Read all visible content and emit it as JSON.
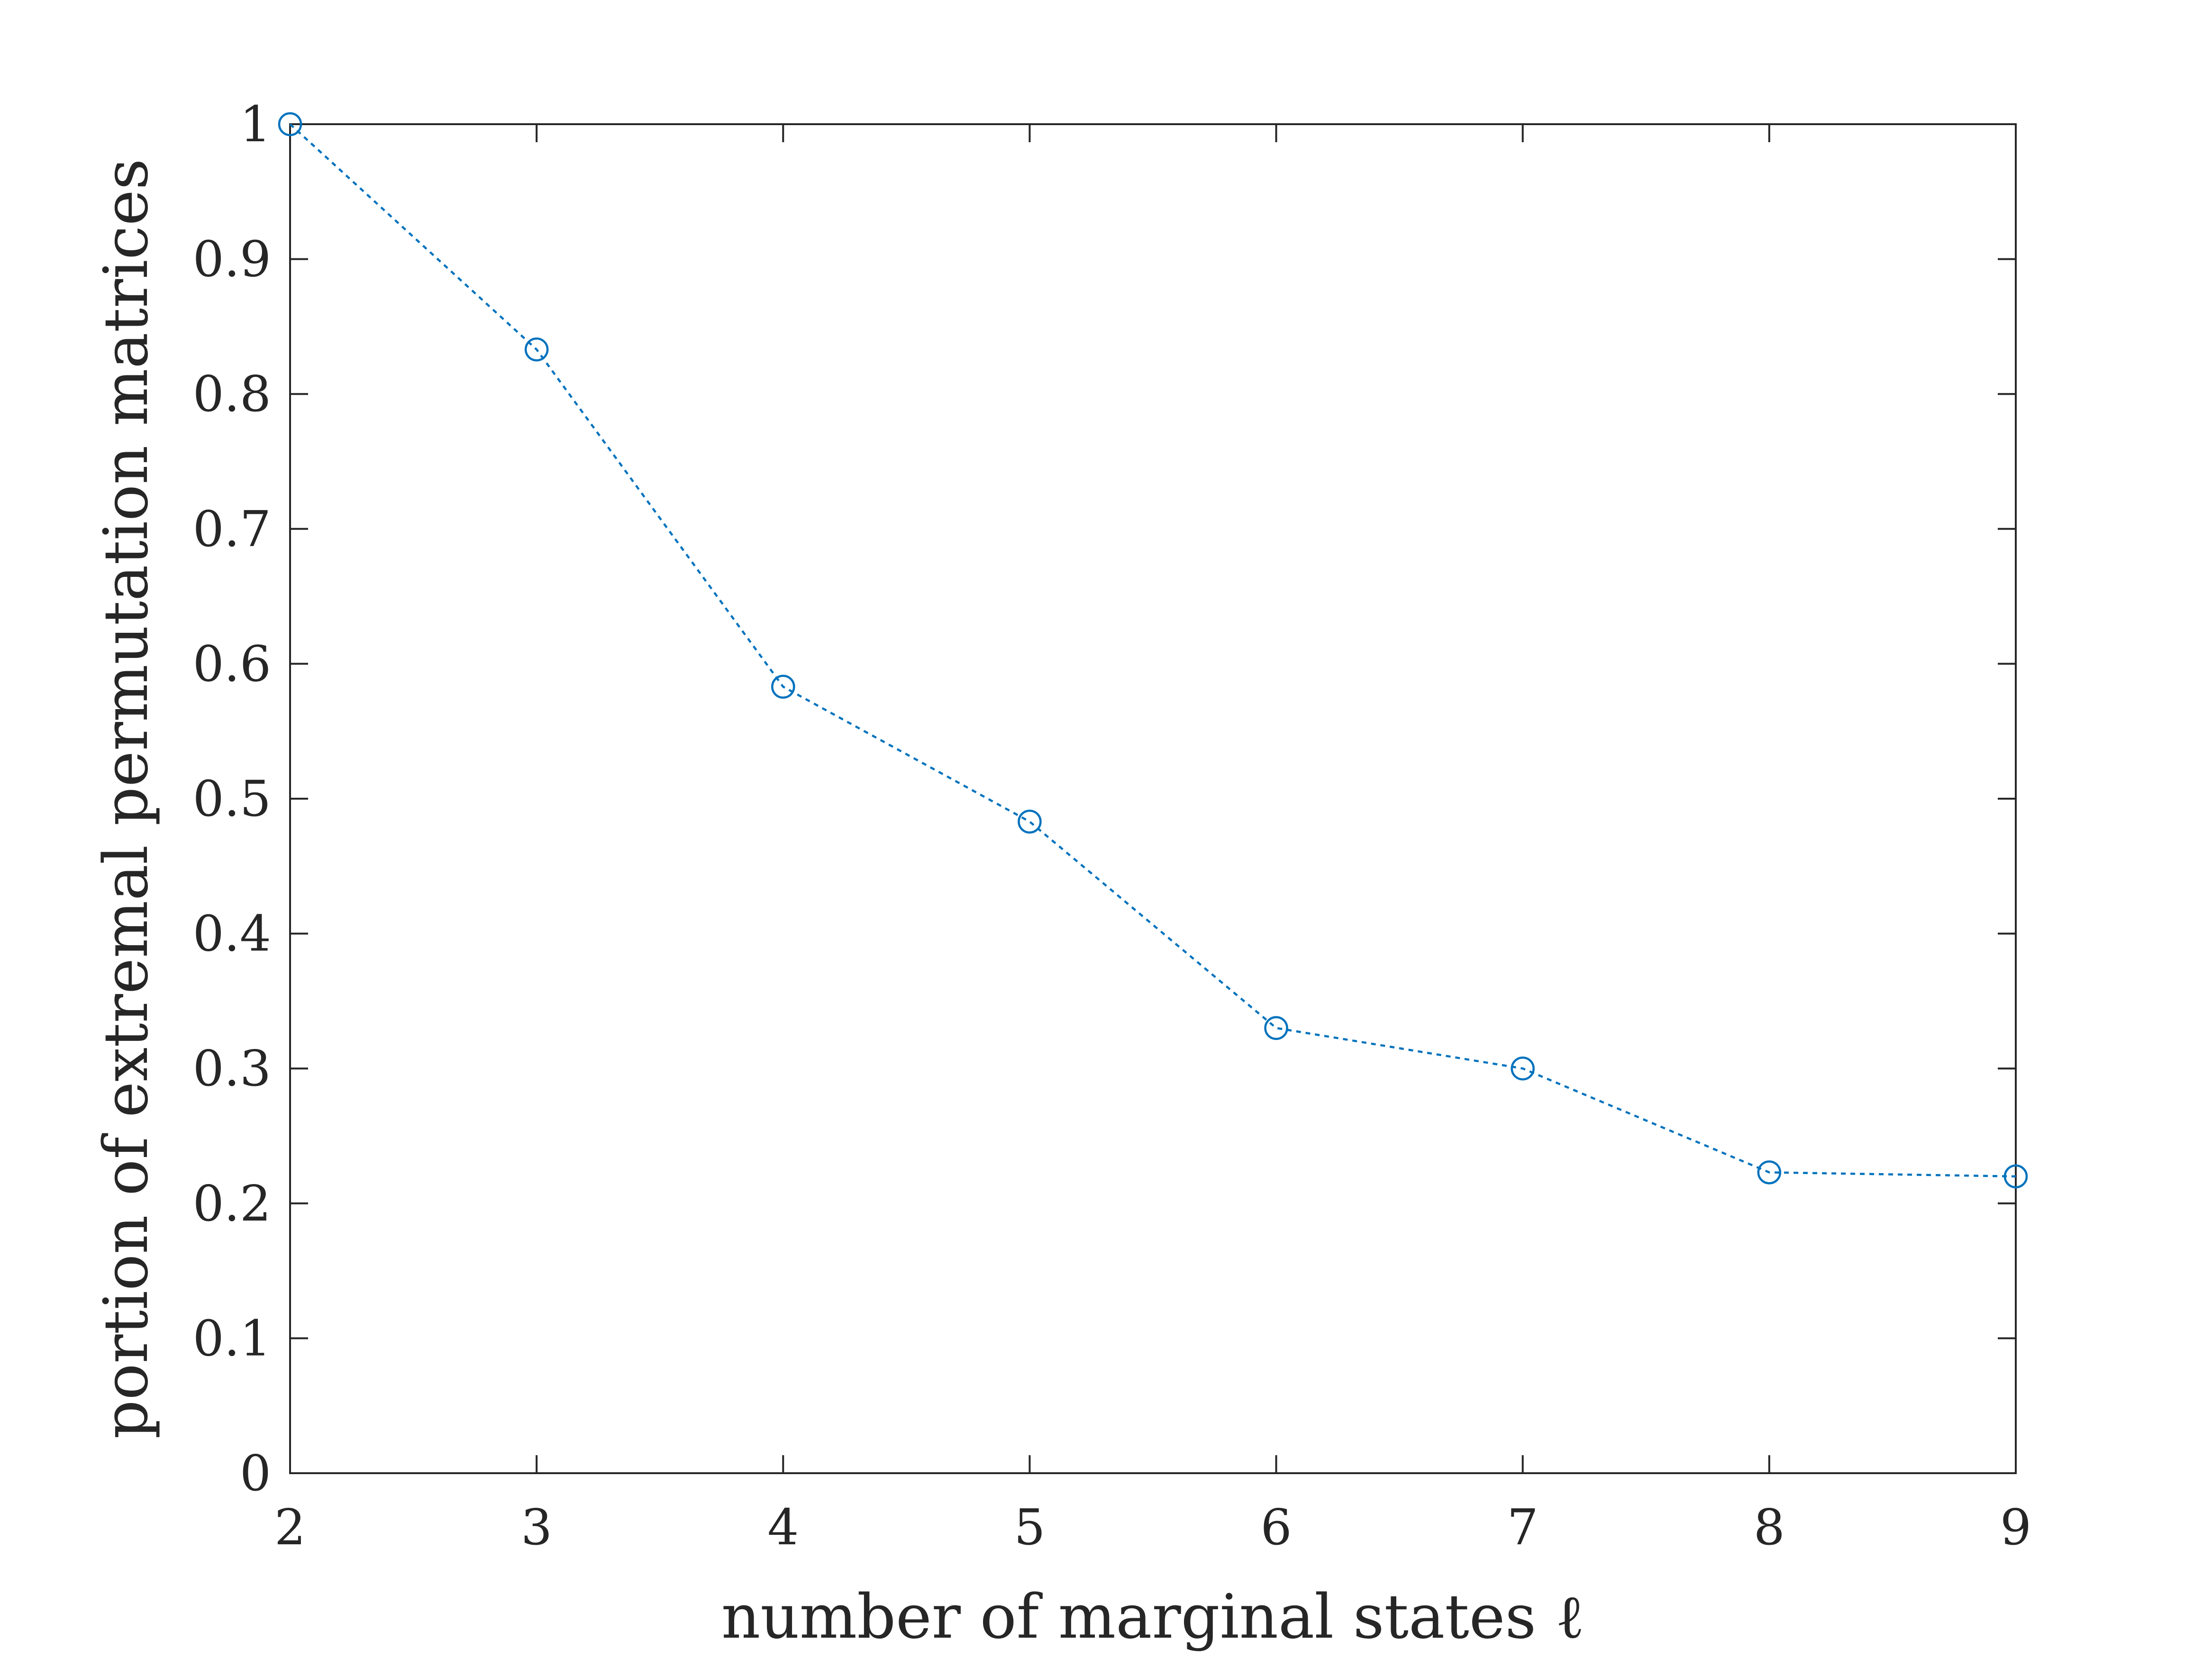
{
  "chart_data": {
    "type": "line",
    "title": "",
    "xlabel": "number of marginal states ℓ",
    "ylabel": "portion of extremal permutation matrices",
    "x": [
      2,
      3,
      4,
      5,
      6,
      7,
      8,
      9
    ],
    "series": [
      {
        "values": [
          1.0,
          0.833,
          0.583,
          0.483,
          0.33,
          0.3,
          0.223,
          0.22
        ],
        "color": "#0072BD",
        "line_style": "dotted",
        "marker": "circle"
      }
    ],
    "xlim": [
      2,
      9
    ],
    "ylim": [
      0,
      1
    ],
    "xticks": [
      "2",
      "3",
      "4",
      "5",
      "6",
      "7",
      "8",
      "9"
    ],
    "yticks": [
      "0",
      "0.1",
      "0.2",
      "0.3",
      "0.4",
      "0.5",
      "0.6",
      "0.7",
      "0.8",
      "0.9",
      "1"
    ],
    "grid": false,
    "legend": "none",
    "axis_color": "#262626"
  }
}
